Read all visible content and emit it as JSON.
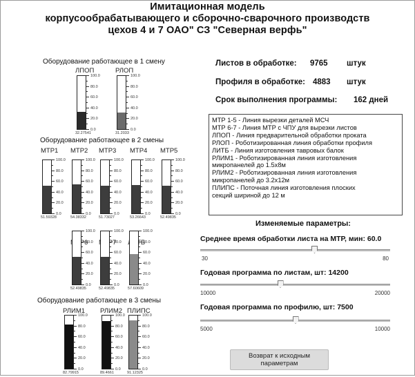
{
  "title": {
    "line1": "Имитационная модель",
    "line2": "корпусообрабатывающего и сборочно-сварочного производств",
    "line3": "цехов 4 и 7 ОАО\" СЗ \"Северная верфь\""
  },
  "scale_labels": [
    "100.0",
    "80.0",
    "60.0",
    "40.0",
    "20.0",
    "0.0"
  ],
  "shift1": {
    "label": "Оборудование работающее в 1 смену",
    "gauges": [
      {
        "name": "ЛПОП",
        "value": 32.27541,
        "readout": "32.27541",
        "color": "#2a2a2a"
      },
      {
        "name": "РЛОП",
        "value": 31.2033,
        "readout": "31.2033",
        "color": "#6b6b6b"
      }
    ]
  },
  "shift2": {
    "label": "Оборудование работающее в 2 смены",
    "gauges_row1": [
      {
        "name": "МТР1",
        "value": 51.59328,
        "readout": "51.59328",
        "color": "#3d3d3d"
      },
      {
        "name": "МТР2",
        "value": 54.38332,
        "readout": "54.38332",
        "color": "#3d3d3d"
      },
      {
        "name": "МТР3",
        "value": 51.73027,
        "readout": "51.73027",
        "color": "#3d3d3d"
      },
      {
        "name": "МТР4",
        "value": 53.26643,
        "readout": "53.26643",
        "color": "#3d3d3d"
      },
      {
        "name": "МТР5",
        "value": 52.49835,
        "readout": "52.49835",
        "color": "#3d3d3d"
      }
    ],
    "gauges_row2": [
      {
        "name": "МТР6",
        "value": 52.49835,
        "readout": "52.49835",
        "color": "#3d3d3d"
      },
      {
        "name": "МТР7",
        "value": 52.49835,
        "readout": "52.49835",
        "color": "#3d3d3d"
      },
      {
        "name": "ЛИТБ",
        "value": 57.60609,
        "readout": "57.60609",
        "color": "#8a8a8a"
      }
    ]
  },
  "shift3": {
    "label": "Оборудование работающее в 3 смены",
    "gauges": [
      {
        "name": "РЛИМ1",
        "value": 82.79915,
        "readout": "82.79915",
        "color": "#111111"
      },
      {
        "name": "РЛИМ2",
        "value": 89.4661,
        "readout": "89.4661",
        "color": "#111111"
      },
      {
        "name": "ПЛИПС",
        "value": 91.12325,
        "readout": "91.12325",
        "color": "#8a8a8a"
      }
    ]
  },
  "info": {
    "sheets_label": "Листов в обработке:",
    "sheets_value": "9765",
    "sheets_unit": "штук",
    "profiles_label": "Профиля в обработке:",
    "profiles_value": "4883",
    "profiles_unit": "штук",
    "term_label": "Срок выполнения программы:",
    "term_value": "162 дней"
  },
  "legend": [
    "МТР 1-5 - Линия вырезки деталей МСЧ",
    "МТР 6-7 - Линия МТР с ЧПУ для вырезки листов",
    "ЛПОП - Линия предварительной обработки проката",
    "РЛОП - Роботизированная линия обработки профиля",
    "ЛИТБ - Линия изготовления тавровых балок",
    "РЛИМ1 - Роботизированная линия изготовления",
    "микропанелей до 1.5х8м",
    "РЛИМ2 - Роботизированная линия изготовления",
    " микропанелей до 3.2х12м",
    "ПЛИПС - Поточная линия изготовления плоских",
    "секций шириной до 12 м"
  ],
  "params": {
    "title": "Изменяемые параметры:",
    "sliders": [
      {
        "label": "Среднее время обработки листа на МТР, мин:",
        "value": 60.0,
        "value_text": "60.0",
        "min": 30,
        "max": 80
      },
      {
        "label": "Годовая программа по листам, шт:",
        "value": 14200,
        "value_text": "14200",
        "min": 10000,
        "max": 20000
      },
      {
        "label": "Годовая программа по профилю, шт:",
        "value": 7500,
        "value_text": "7500",
        "min": 5000,
        "max": 10000
      }
    ],
    "reset_label": "Возврат к исходным параметрам"
  }
}
